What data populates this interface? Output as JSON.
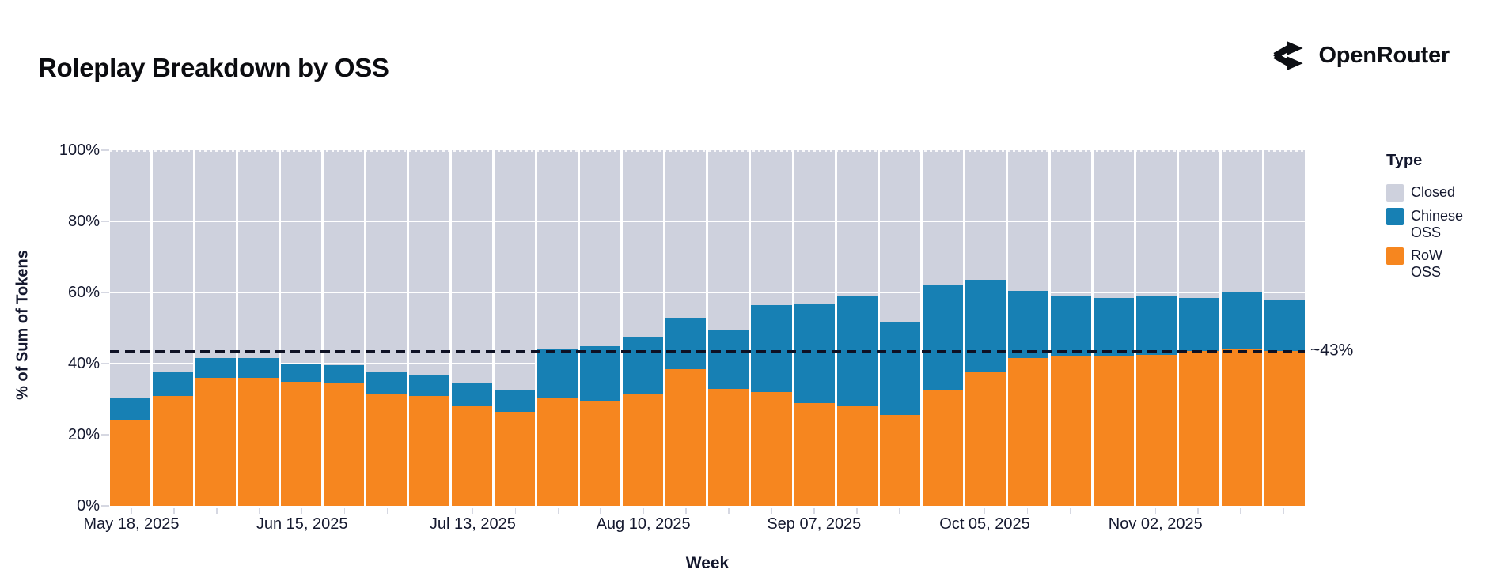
{
  "header": {
    "title": "Roleplay Breakdown by OSS",
    "brand": {
      "name": "OpenRouter",
      "logo_icon": "openrouter-route-split-icon"
    }
  },
  "chart_data": {
    "type": "bar",
    "stacked": true,
    "normalized": true,
    "title": "Roleplay Breakdown by OSS",
    "xlabel": "Week",
    "ylabel": "% of Sum of Tokens",
    "ylim": [
      0,
      100
    ],
    "grid": {
      "horizontal": true,
      "color": "#ffffff",
      "levels": [
        20,
        40,
        60,
        80
      ]
    },
    "yticks": [
      {
        "value": 0,
        "label": "0%"
      },
      {
        "value": 20,
        "label": "20%"
      },
      {
        "value": 40,
        "label": "40%"
      },
      {
        "value": 60,
        "label": "60%"
      },
      {
        "value": 80,
        "label": "80%"
      },
      {
        "value": 100,
        "label": "100%"
      }
    ],
    "x_major_tick_indices": [
      0,
      4,
      8,
      12,
      16,
      20,
      24
    ],
    "x_major_tick_labels": [
      "May 18, 2025",
      "Jun 15, 2025",
      "Jul 13, 2025",
      "Aug 10, 2025",
      "Sep 07, 2025",
      "Oct 05, 2025",
      "Nov 02, 2025"
    ],
    "categories": [
      "May 18, 2025",
      "May 25, 2025",
      "Jun 01, 2025",
      "Jun 08, 2025",
      "Jun 15, 2025",
      "Jun 22, 2025",
      "Jun 29, 2025",
      "Jul 06, 2025",
      "Jul 13, 2025",
      "Jul 20, 2025",
      "Jul 27, 2025",
      "Aug 03, 2025",
      "Aug 10, 2025",
      "Aug 17, 2025",
      "Aug 24, 2025",
      "Aug 31, 2025",
      "Sep 07, 2025",
      "Sep 14, 2025",
      "Sep 21, 2025",
      "Sep 28, 2025",
      "Oct 05, 2025",
      "Oct 12, 2025",
      "Oct 19, 2025",
      "Oct 26, 2025",
      "Nov 02, 2025",
      "Nov 09, 2025",
      "Nov 16, 2025",
      "Nov 23, 2025"
    ],
    "series": [
      {
        "name": "RoW OSS",
        "color": "#F6861F",
        "values": [
          24,
          31,
          36,
          36,
          35,
          34.5,
          31.5,
          31,
          28,
          26.5,
          30.5,
          29.5,
          31.5,
          38.5,
          33,
          32,
          29,
          28,
          25.5,
          32.5,
          37.5,
          41.5,
          42,
          42,
          42.5,
          43.5,
          44,
          43.5
        ]
      },
      {
        "name": "Chinese OSS",
        "color": "#1780B4",
        "values": [
          6.5,
          6.5,
          5.5,
          5.5,
          5,
          5,
          6,
          6,
          6.5,
          6,
          13.5,
          15.5,
          16,
          14.5,
          16.5,
          24.5,
          28,
          31,
          26,
          29.5,
          26,
          19,
          17,
          16.5,
          16.5,
          15,
          16,
          14.5
        ]
      },
      {
        "name": "Closed",
        "color": "#CED1DD",
        "values": [
          69.5,
          62.5,
          58.5,
          58.5,
          60,
          60.5,
          62.5,
          63,
          65.5,
          67.5,
          56,
          55,
          52.5,
          47,
          50.5,
          43.5,
          43,
          41,
          48.5,
          38,
          36.5,
          39.5,
          41,
          41.5,
          41,
          41.5,
          40,
          42
        ]
      }
    ],
    "reference_line": {
      "label": "~43%",
      "value": 43.5,
      "style": "dashed",
      "color": "#0e1124"
    },
    "legend": {
      "title": "Type",
      "position": "right",
      "entries": [
        {
          "label": "Closed",
          "color": "#CED1DD"
        },
        {
          "label": "Chinese OSS",
          "color": "#1780B4"
        },
        {
          "label": "RoW OSS",
          "color": "#F6861F"
        }
      ]
    }
  }
}
